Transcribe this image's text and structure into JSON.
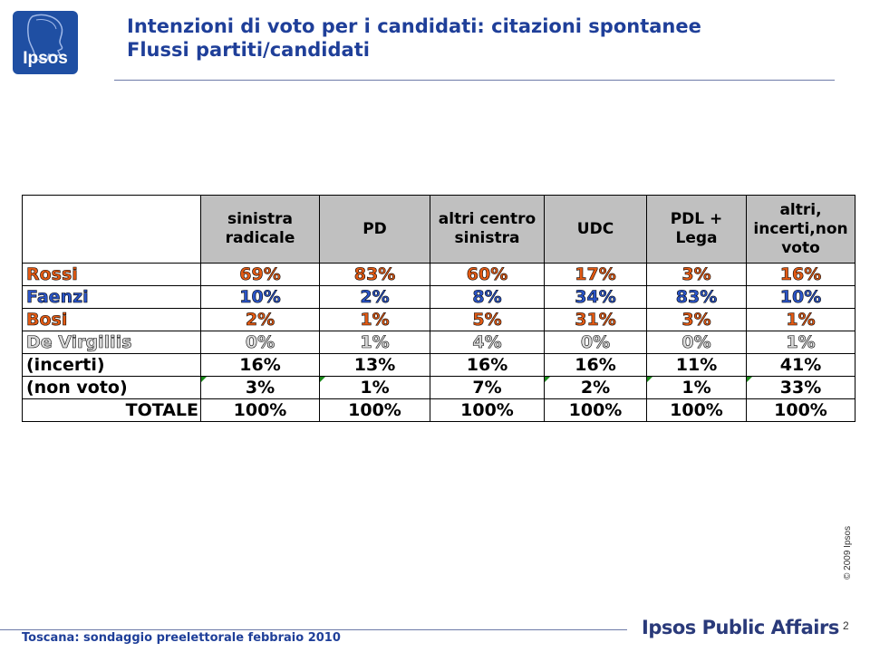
{
  "logo": {
    "text": "Ipsos"
  },
  "header": {
    "title_line1": "Intenzioni di voto per i candidati: citazioni spontanee",
    "title_line2": "Flussi partiti/candidati"
  },
  "table": {
    "columns": [
      "sinistra radicale",
      "PD",
      "altri centro sinistra",
      "UDC",
      "PDL + Lega",
      "altri, incerti,non voto"
    ],
    "rows": [
      {
        "label": "Rossi",
        "values": [
          "69%",
          "83%",
          "60%",
          "17%",
          "3%",
          "16%"
        ]
      },
      {
        "label": "Faenzi",
        "values": [
          "10%",
          "2%",
          "8%",
          "34%",
          "83%",
          "10%"
        ]
      },
      {
        "label": "Bosi",
        "values": [
          "2%",
          "1%",
          "5%",
          "31%",
          "3%",
          "1%"
        ]
      },
      {
        "label": "De Virgiliis",
        "values": [
          "0%",
          "1%",
          "4%",
          "0%",
          "0%",
          "1%"
        ]
      },
      {
        "label": "(incerti)",
        "values": [
          "16%",
          "13%",
          "16%",
          "16%",
          "11%",
          "41%"
        ]
      },
      {
        "label": "(non voto)",
        "values": [
          "3%",
          "1%",
          "7%",
          "2%",
          "1%",
          "33%"
        ]
      },
      {
        "label": "TOTALE",
        "values": [
          "100%",
          "100%",
          "100%",
          "100%",
          "100%",
          "100%"
        ]
      }
    ]
  },
  "colors": {
    "title": "#1f3f99",
    "highlight_orange": "#e35a13",
    "candidate_blue": "#2b55c8",
    "header_gray": "#c0c0c0",
    "logo_blue": "#1f4fa3"
  },
  "copyright": "© 2009 Ipsos",
  "footer": {
    "left_text": "Toscana: sondaggio preelettorale febbraio 2010",
    "brand": "Ipsos Public Affairs",
    "page_number": "2"
  }
}
